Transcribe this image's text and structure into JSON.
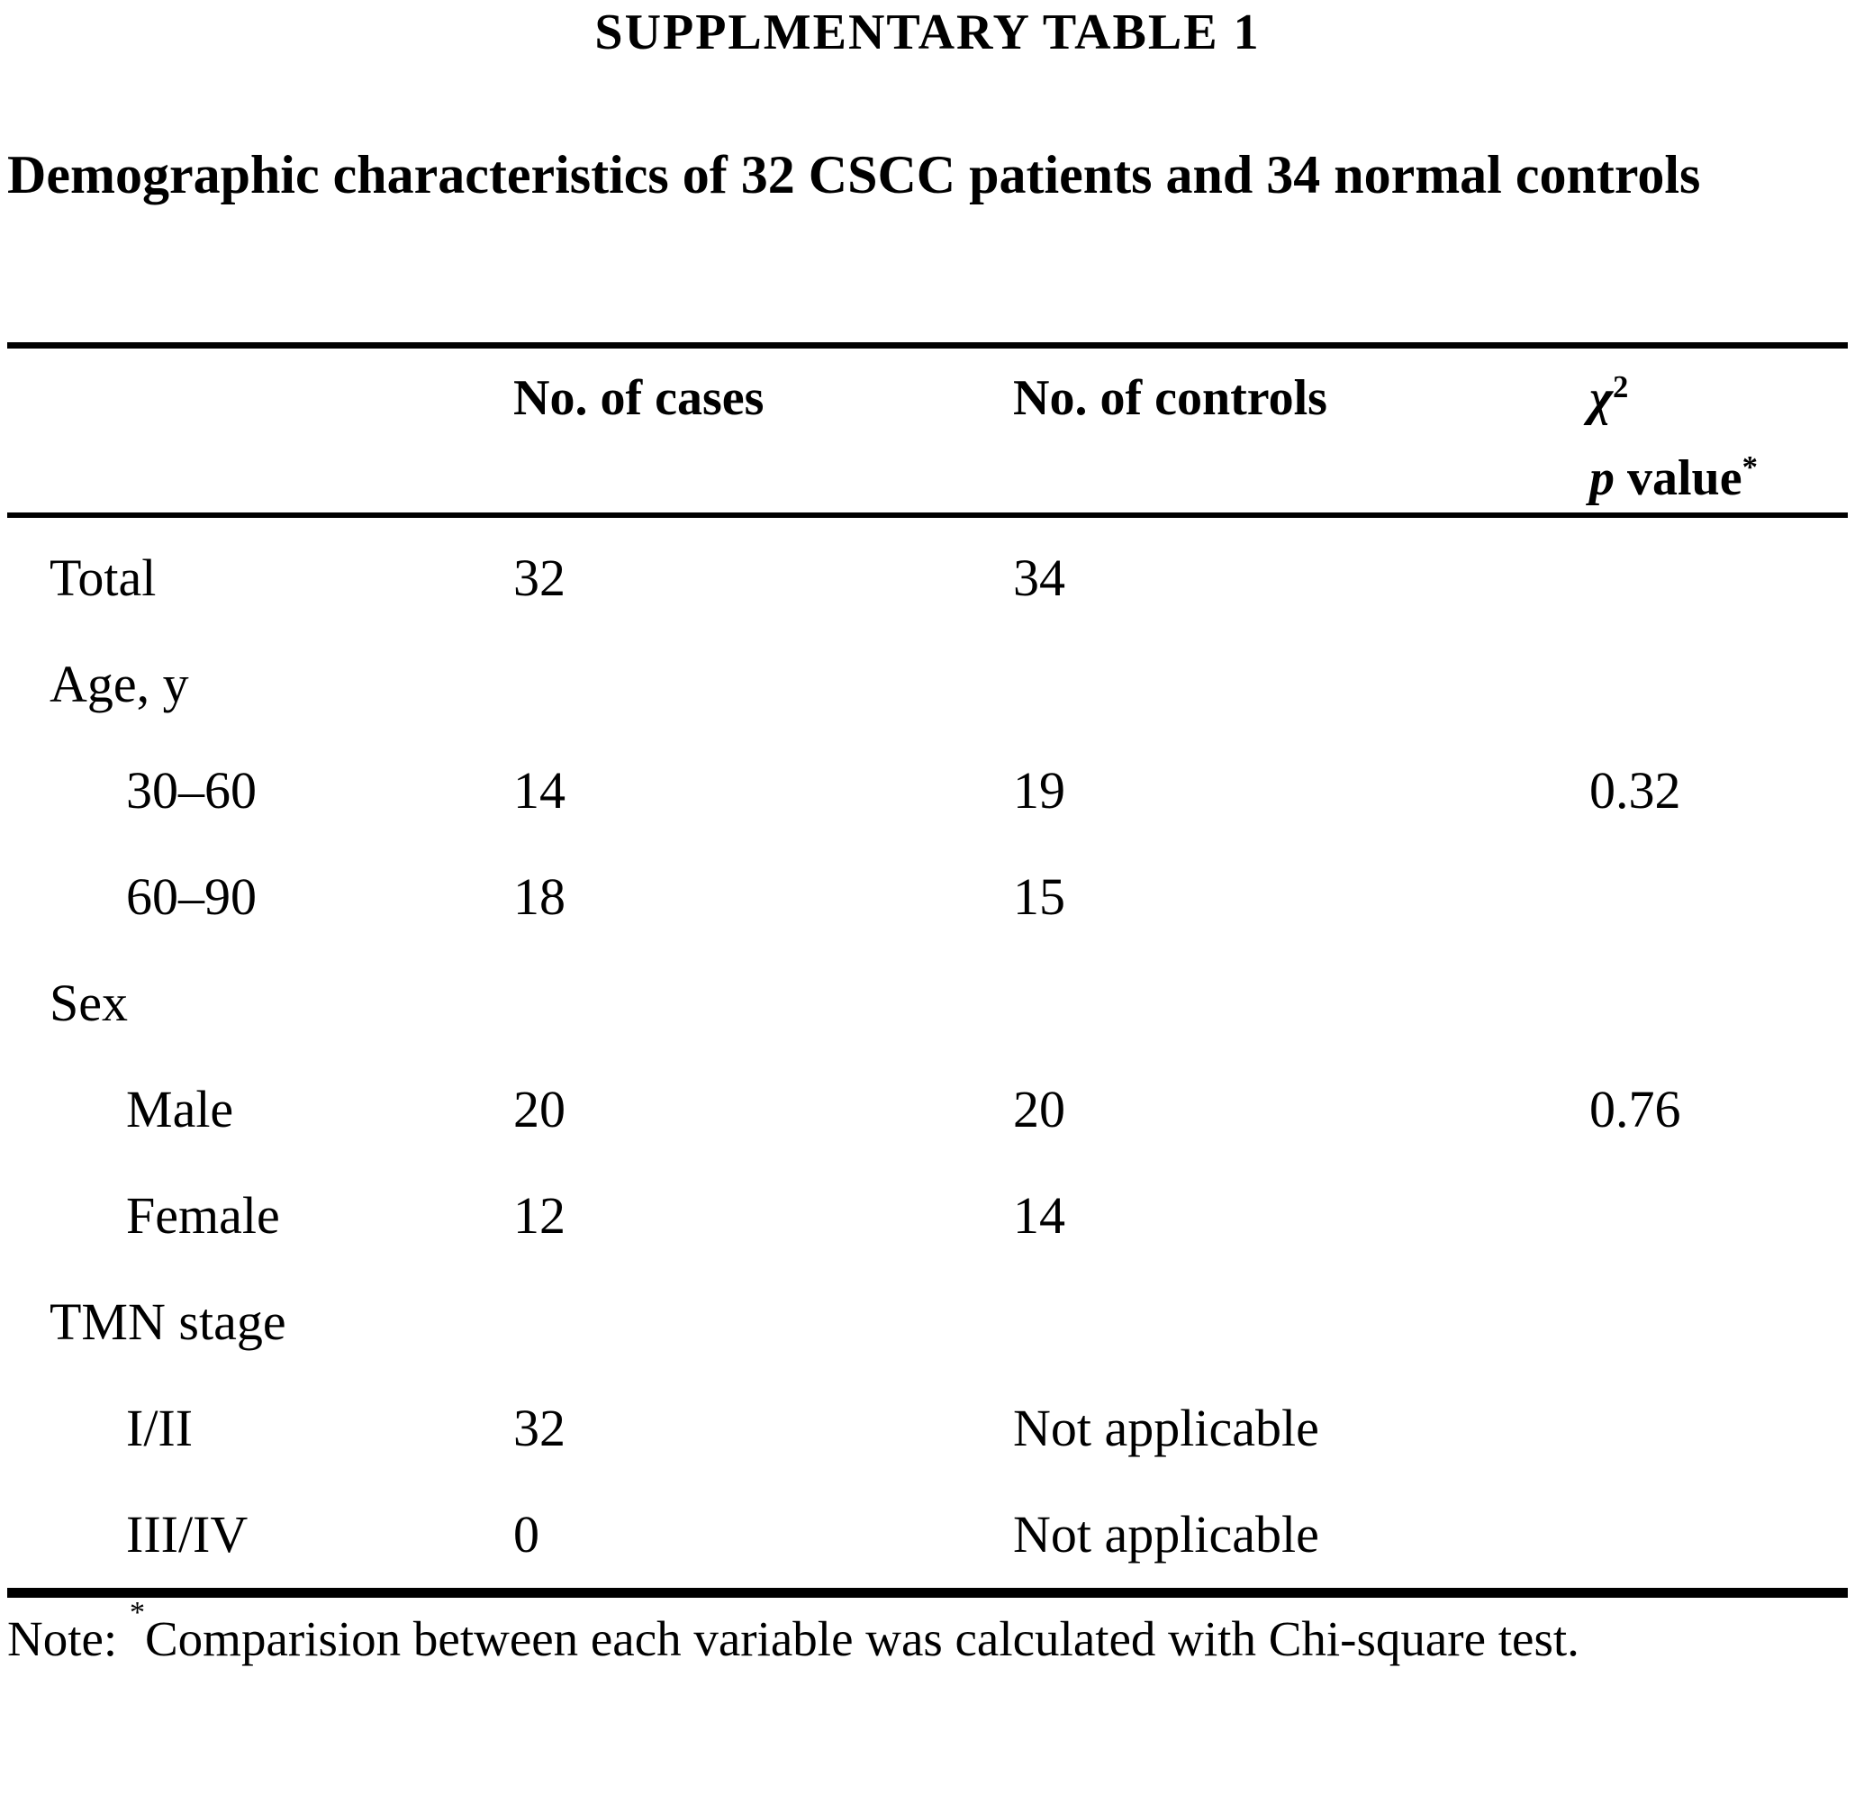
{
  "title": "SUPPLMENTARY TABLE 1",
  "subtitle": "Demographic characteristics of 32 CSCC patients and 34 normal controls",
  "table": {
    "columns": {
      "cases": "No. of cases",
      "controls": "No. of controls",
      "chi": "χ",
      "chi_sup": "2",
      "p_italic": "p",
      "p_rest": " value",
      "p_sup": "*"
    },
    "rows": [
      {
        "label": "Total",
        "cases": "32",
        "controls": "34",
        "p": ""
      },
      {
        "label": "Age, y",
        "cases": "",
        "controls": "",
        "p": ""
      },
      {
        "label": "30–60",
        "cases": "14",
        "controls": "19",
        "p": "0.32"
      },
      {
        "label": "60–90",
        "cases": "18",
        "controls": "15",
        "p": ""
      },
      {
        "label": "Sex",
        "cases": "",
        "controls": "",
        "p": ""
      },
      {
        "label": "Male",
        "cases": "20",
        "controls": "20",
        "p": "0.76"
      },
      {
        "label": "Female",
        "cases": "12",
        "controls": "14",
        "p": ""
      },
      {
        "label": "TMN stage",
        "cases": "",
        "controls": "",
        "p": ""
      },
      {
        "label": "I/II",
        "cases": "32",
        "controls": "Not applicable",
        "p": ""
      },
      {
        "label": "III/IV",
        "cases": "0",
        "controls": "Not applicable",
        "p": ""
      }
    ]
  },
  "note": {
    "prefix": "Note: ",
    "sup": "*",
    "body": "Comparision between each variable was calculated with Chi-square test."
  }
}
